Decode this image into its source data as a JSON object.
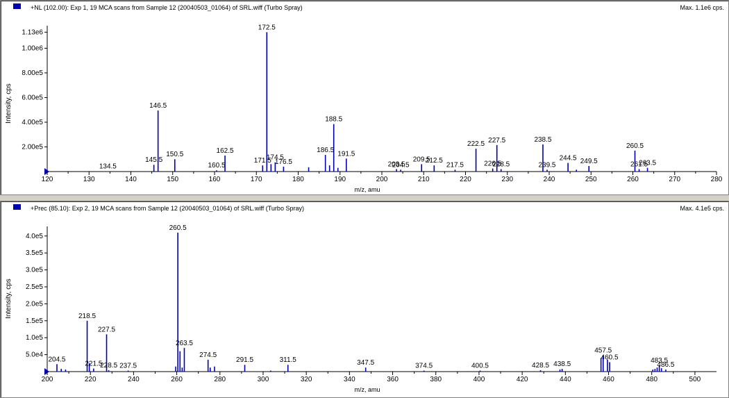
{
  "colors": {
    "trace": "#0000b0",
    "axis": "#000000",
    "background": "#ffffff"
  },
  "chart_data": [
    {
      "type": "bar",
      "title": "+NL (102.00): Exp 1, 19 MCA scans from Sample 12 (20040503_01064) of SRL.wiff (Turbo Spray)",
      "max_label": "Max. 1.1e6 cps.",
      "xlabel": "m/z, amu",
      "ylabel": "Intensity, cps",
      "xlim": [
        120,
        280
      ],
      "ylim": [
        0,
        1160000
      ],
      "xticks": [
        120,
        130,
        140,
        150,
        160,
        170,
        180,
        190,
        200,
        210,
        220,
        230,
        240,
        250,
        260,
        270,
        280
      ],
      "yticks": [
        {
          "value": 200000,
          "label": "2.00e5"
        },
        {
          "value": 400000,
          "label": "4.00e5"
        },
        {
          "value": 600000,
          "label": "6.00e5"
        },
        {
          "value": 800000,
          "label": "8.00e5"
        },
        {
          "value": 1000000,
          "label": "1.00e6"
        },
        {
          "value": 1130000,
          "label": "1.13e6"
        }
      ],
      "peaks": [
        {
          "x": 134.5,
          "y": 3000,
          "label": "134.5"
        },
        {
          "x": 145.5,
          "y": 55000,
          "label": "145.5"
        },
        {
          "x": 146.5,
          "y": 495000,
          "label": "146.5"
        },
        {
          "x": 150.5,
          "y": 100000,
          "label": "150.5"
        },
        {
          "x": 160.5,
          "y": 10000,
          "label": "160.5"
        },
        {
          "x": 162.5,
          "y": 130000,
          "label": "162.5"
        },
        {
          "x": 171.5,
          "y": 50000,
          "label": "171.5"
        },
        {
          "x": 172.5,
          "y": 1130000,
          "label": "172.5"
        },
        {
          "x": 173.5,
          "y": 60000,
          "label": ""
        },
        {
          "x": 174.5,
          "y": 75000,
          "label": "174.5"
        },
        {
          "x": 176.5,
          "y": 40000,
          "label": "176.5"
        },
        {
          "x": 182.5,
          "y": 35000,
          "label": ""
        },
        {
          "x": 186.5,
          "y": 135000,
          "label": "186.5"
        },
        {
          "x": 187.5,
          "y": 50000,
          "label": ""
        },
        {
          "x": 188.5,
          "y": 385000,
          "label": "188.5"
        },
        {
          "x": 189.5,
          "y": 30000,
          "label": ""
        },
        {
          "x": 191.5,
          "y": 105000,
          "label": "191.5"
        },
        {
          "x": 203.5,
          "y": 20000,
          "label": "203.5"
        },
        {
          "x": 204.5,
          "y": 15000,
          "label": "204.5"
        },
        {
          "x": 209.5,
          "y": 60000,
          "label": "209.5"
        },
        {
          "x": 212.5,
          "y": 50000,
          "label": "212.5"
        },
        {
          "x": 217.5,
          "y": 15000,
          "label": "217.5"
        },
        {
          "x": 222.5,
          "y": 185000,
          "label": "222.5"
        },
        {
          "x": 226.5,
          "y": 25000,
          "label": "226.5"
        },
        {
          "x": 227.5,
          "y": 215000,
          "label": "227.5"
        },
        {
          "x": 228.5,
          "y": 20000,
          "label": "228.5"
        },
        {
          "x": 238.5,
          "y": 220000,
          "label": "238.5"
        },
        {
          "x": 239.5,
          "y": 15000,
          "label": "239.5"
        },
        {
          "x": 244.5,
          "y": 70000,
          "label": "244.5"
        },
        {
          "x": 246.5,
          "y": 15000,
          "label": ""
        },
        {
          "x": 249.5,
          "y": 45000,
          "label": "249.5"
        },
        {
          "x": 260.5,
          "y": 170000,
          "label": "260.5"
        },
        {
          "x": 261.5,
          "y": 20000,
          "label": "261.5"
        },
        {
          "x": 263.5,
          "y": 30000,
          "label": "263.5"
        }
      ]
    },
    {
      "type": "bar",
      "title": "+Prec (85.10): Exp 2, 19 MCA scans from Sample 12 (20040503_01064) of SRL.wiff (Turbo Spray)",
      "max_label": "Max. 4.1e5 cps.",
      "xlabel": "m/z, amu",
      "ylabel": "Intensity, cps",
      "xlim": [
        200,
        510
      ],
      "ylim": [
        0,
        420000
      ],
      "xticks": [
        200,
        220,
        240,
        260,
        280,
        300,
        320,
        340,
        360,
        380,
        400,
        420,
        440,
        460,
        480,
        500
      ],
      "yticks": [
        {
          "value": 50000,
          "label": "5.0e4"
        },
        {
          "value": 100000,
          "label": "1.0e5"
        },
        {
          "value": 150000,
          "label": "1.5e5"
        },
        {
          "value": 200000,
          "label": "2.0e5"
        },
        {
          "value": 250000,
          "label": "2.5e5"
        },
        {
          "value": 300000,
          "label": "3.0e5"
        },
        {
          "value": 350000,
          "label": "3.5e5"
        },
        {
          "value": 400000,
          "label": "4.0e5"
        }
      ],
      "peaks": [
        {
          "x": 204.5,
          "y": 22000,
          "label": "204.5"
        },
        {
          "x": 206.5,
          "y": 8000,
          "label": ""
        },
        {
          "x": 208.5,
          "y": 6000,
          "label": ""
        },
        {
          "x": 218.5,
          "y": 150000,
          "label": "218.5"
        },
        {
          "x": 219.5,
          "y": 25000,
          "label": ""
        },
        {
          "x": 221.5,
          "y": 9000,
          "label": "221.5"
        },
        {
          "x": 227.5,
          "y": 110000,
          "label": "227.5"
        },
        {
          "x": 228.5,
          "y": 4000,
          "label": "228.5"
        },
        {
          "x": 237.5,
          "y": 3000,
          "label": "237.5"
        },
        {
          "x": 259.5,
          "y": 15000,
          "label": ""
        },
        {
          "x": 260.5,
          "y": 410000,
          "label": "260.5"
        },
        {
          "x": 261.5,
          "y": 60000,
          "label": ""
        },
        {
          "x": 262.5,
          "y": 12000,
          "label": ""
        },
        {
          "x": 263.5,
          "y": 70000,
          "label": "263.5"
        },
        {
          "x": 274.5,
          "y": 35000,
          "label": "274.5"
        },
        {
          "x": 275.5,
          "y": 12000,
          "label": ""
        },
        {
          "x": 277.5,
          "y": 15000,
          "label": ""
        },
        {
          "x": 291.5,
          "y": 20000,
          "label": "291.5"
        },
        {
          "x": 303.5,
          "y": 3000,
          "label": ""
        },
        {
          "x": 311.5,
          "y": 20000,
          "label": "311.5"
        },
        {
          "x": 347.5,
          "y": 12000,
          "label": "347.5"
        },
        {
          "x": 374.5,
          "y": 3000,
          "label": "374.5"
        },
        {
          "x": 400.5,
          "y": 3000,
          "label": "400.5"
        },
        {
          "x": 428.5,
          "y": 4000,
          "label": "428.5"
        },
        {
          "x": 437.5,
          "y": 6000,
          "label": ""
        },
        {
          "x": 438.5,
          "y": 8000,
          "label": "438.5"
        },
        {
          "x": 456.5,
          "y": 40000,
          "label": ""
        },
        {
          "x": 457.5,
          "y": 48000,
          "label": "457.5"
        },
        {
          "x": 459.5,
          "y": 35000,
          "label": ""
        },
        {
          "x": 460.5,
          "y": 28000,
          "label": "460.5"
        },
        {
          "x": 480.5,
          "y": 6000,
          "label": ""
        },
        {
          "x": 481.5,
          "y": 8000,
          "label": ""
        },
        {
          "x": 482.5,
          "y": 12000,
          "label": ""
        },
        {
          "x": 483.5,
          "y": 18000,
          "label": "483.5"
        },
        {
          "x": 484.5,
          "y": 10000,
          "label": ""
        },
        {
          "x": 486.5,
          "y": 6000,
          "label": "486.5"
        }
      ]
    }
  ]
}
